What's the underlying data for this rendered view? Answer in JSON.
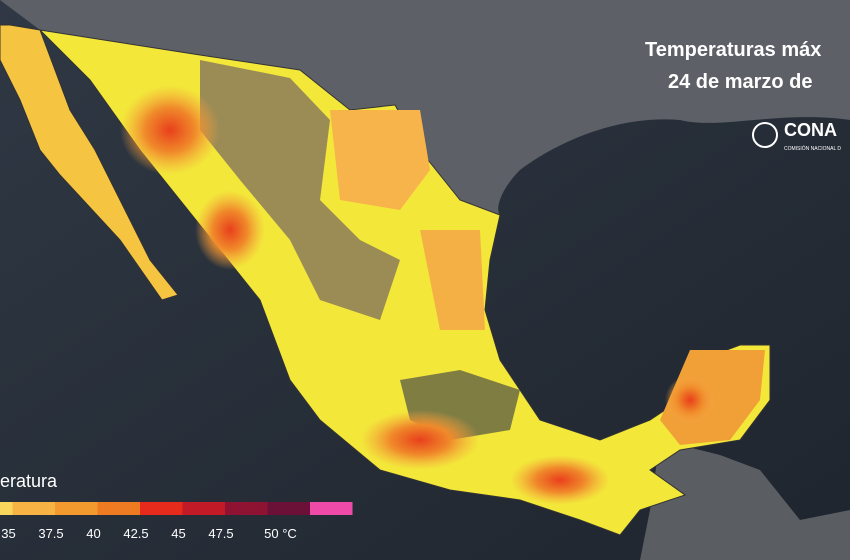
{
  "header": {
    "title": "Temperaturas máx",
    "subtitle": "24 de marzo de"
  },
  "logo": {
    "name": "CONA",
    "tagline": "COMISIÓN NACIONAL D"
  },
  "legend": {
    "title": "eratura",
    "colors": [
      "#f9d65c",
      "#f7b445",
      "#f39a2e",
      "#ee7a22",
      "#e62a1c",
      "#c21a26",
      "#8e1332",
      "#6b1036",
      "#ef4aa8"
    ],
    "labels": [
      "35",
      "37.5",
      "40",
      "42.5",
      "45",
      "47.5",
      "50 °C"
    ]
  }
}
